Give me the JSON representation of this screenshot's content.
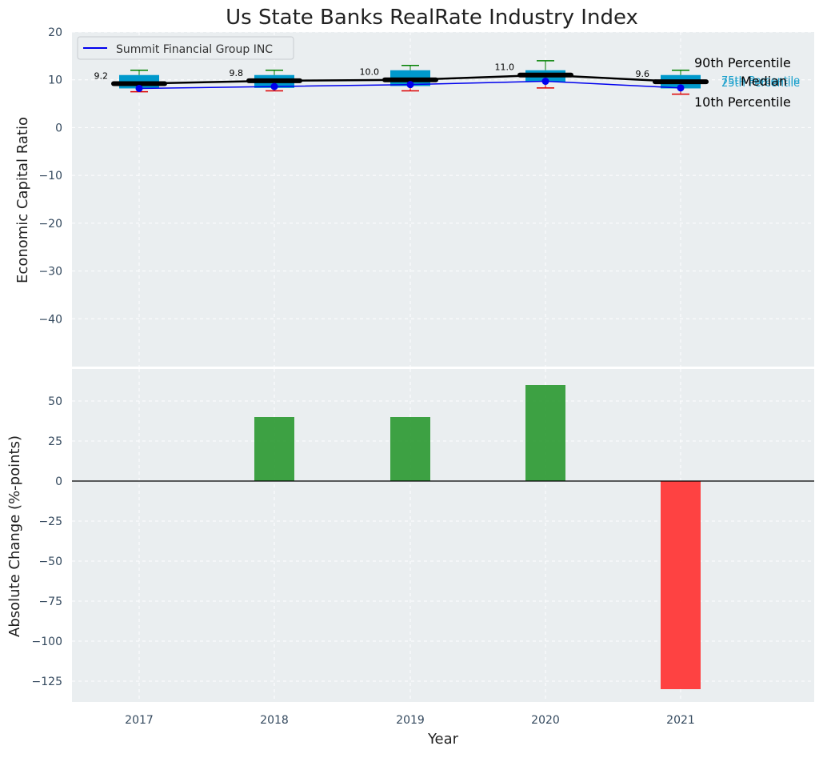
{
  "colors": {
    "panel_bg": "#eaeef0",
    "grid": "#ffffff",
    "box": "#0099cc",
    "median_line": "#000000",
    "company_line": "#0000ee",
    "whisker_high": "#008000",
    "whisker_low": "#dd0000",
    "bar_positive": "#2e9a34",
    "bar_negative": "#ff3333",
    "pct_label": "#1aa0cc"
  },
  "chart_data": [
    {
      "type": "box",
      "title": "Us State Banks RealRate Industry Index",
      "xlabel": "",
      "ylabel": "Economic Capital Ratio",
      "ylim": [
        -50,
        20
      ],
      "yticks": [
        20,
        10,
        0,
        -10,
        -20,
        -30,
        -40
      ],
      "ytick_labels": [
        "20",
        "10",
        "0",
        "−10",
        "−20",
        "−30",
        "−40"
      ],
      "categories": [
        "2017",
        "2018",
        "2019",
        "2020",
        "2021"
      ],
      "p10": [
        7.5,
        7.7,
        7.7,
        8.3,
        7.0
      ],
      "p25": [
        8.2,
        8.3,
        8.7,
        9.6,
        8.2
      ],
      "median": [
        9.2,
        9.8,
        10.0,
        11.0,
        9.6
      ],
      "p75": [
        11.0,
        11.0,
        12.0,
        12.0,
        11.0
      ],
      "p90": [
        12.0,
        12.0,
        13.0,
        14.0,
        12.0
      ],
      "median_labels": [
        "9.2",
        "9.8",
        "10.0",
        "11.0",
        "9.6"
      ],
      "company_series": {
        "name": "Summit Financial Group INC",
        "values": [
          8.2,
          8.6,
          9.0,
          9.7,
          8.3
        ]
      },
      "legend_label": "Summit Financial Group INC",
      "legend_position": "top-left",
      "annotations": {
        "p90": "90th Percentile",
        "p75": "75th Percentile",
        "median": "Median",
        "p25": "25th Percentile",
        "p10": "10th Percentile"
      }
    },
    {
      "type": "bar",
      "xlabel": "Year",
      "ylabel": "Absolute Change (%-points)",
      "ylim": [
        -138,
        70
      ],
      "yticks": [
        50,
        25,
        0,
        -25,
        -50,
        -75,
        -100,
        -125
      ],
      "ytick_labels": [
        "50",
        "25",
        "0",
        "−25",
        "−50",
        "−75",
        "−100",
        "−125"
      ],
      "categories": [
        "2017",
        "2018",
        "2019",
        "2020",
        "2021"
      ],
      "values": [
        0,
        40,
        40,
        60,
        -130
      ]
    }
  ]
}
